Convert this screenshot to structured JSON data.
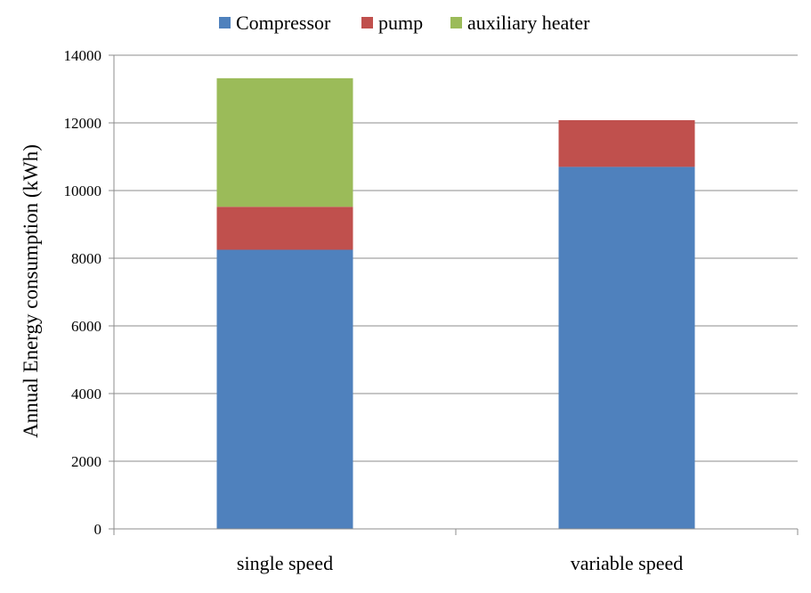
{
  "chart_data": {
    "type": "bar",
    "stacked": true,
    "categories": [
      "single speed",
      "variable speed"
    ],
    "series": [
      {
        "name": "Compressor",
        "color": "#4F81BD",
        "values": [
          8250,
          10700
        ]
      },
      {
        "name": "pump",
        "color": "#C0504D",
        "values": [
          1270,
          1380
        ]
      },
      {
        "name": "auxiliary heater",
        "color": "#9BBB59",
        "values": [
          3800,
          0
        ]
      }
    ],
    "ylabel": "Annual Energy consumption (kWh)",
    "xlabel": "",
    "ylim": [
      0,
      14000
    ],
    "yticks": [
      "0",
      "2000",
      "4000",
      "6000",
      "8000",
      "10000",
      "12000",
      "14000"
    ],
    "grid": "horizontal",
    "legend_position": "top"
  }
}
